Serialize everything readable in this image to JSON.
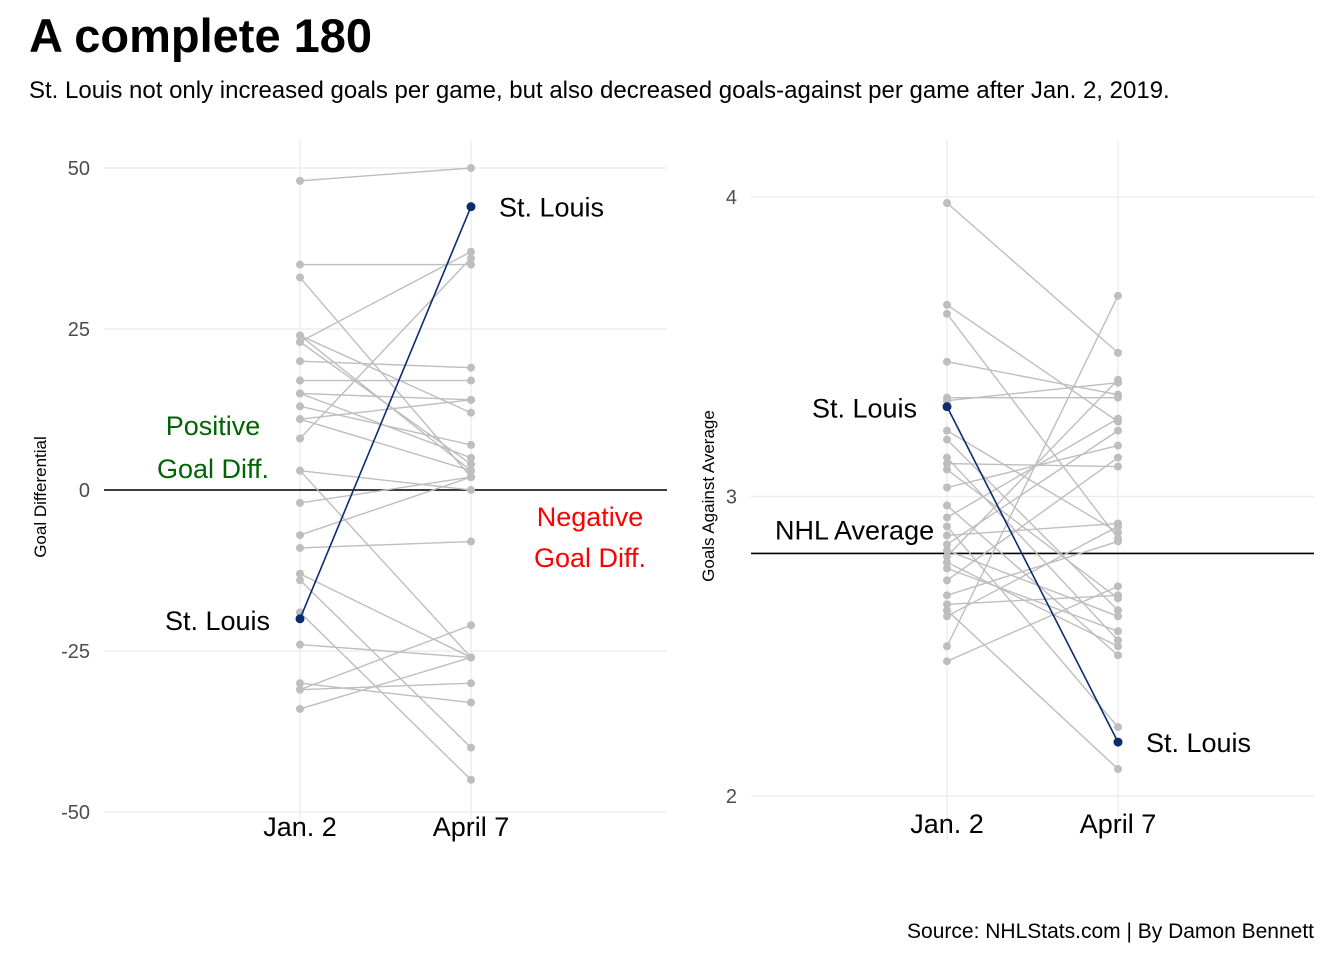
{
  "title": "A complete 180",
  "subtitle": "St. Louis not only increased goals per game, but also decreased goals-against per game after Jan. 2, 2019.",
  "caption": "Source: NHLStats.com | By Damon Bennett",
  "colors": {
    "others": "#bebebe",
    "highlight": "#0b2d6e",
    "reference": "#000000",
    "positive": "#006400",
    "negative": "#ff0000",
    "grid": "#ebebeb"
  },
  "chart_data": [
    {
      "type": "line",
      "ylabel": "Goal Differential",
      "categories": [
        "Jan. 2",
        "April 7"
      ],
      "ylim": [
        -50,
        50
      ],
      "yticks": [
        -50,
        -25,
        0,
        25,
        50
      ],
      "ytick_labels": [
        "-50",
        "-25",
        "0",
        "25",
        "50"
      ],
      "reference_line": 0,
      "highlight": {
        "team": "St. Louis",
        "values": [
          -20,
          44
        ],
        "labels": [
          "St. Louis",
          "St. Louis"
        ]
      },
      "annotations": [
        {
          "lines": [
            "Positive",
            "Goal Diff."
          ],
          "color": "positive"
        },
        {
          "lines": [
            "Negative",
            "Goal Diff."
          ],
          "color": "negative"
        }
      ],
      "pairs": [
        [
          48,
          50
        ],
        [
          35,
          35
        ],
        [
          33,
          2
        ],
        [
          24,
          3
        ],
        [
          24,
          12
        ],
        [
          23,
          37
        ],
        [
          23,
          4
        ],
        [
          20,
          19
        ],
        [
          17,
          17
        ],
        [
          15,
          14
        ],
        [
          15,
          5
        ],
        [
          13,
          7
        ],
        [
          11,
          14
        ],
        [
          11,
          3
        ],
        [
          8,
          36
        ],
        [
          3,
          0
        ],
        [
          3,
          -26
        ],
        [
          -2,
          2
        ],
        [
          -7,
          2
        ],
        [
          -9,
          -8
        ],
        [
          -13,
          -26
        ],
        [
          -14,
          -40
        ],
        [
          -19,
          -45
        ],
        [
          -24,
          -26
        ],
        [
          -30,
          -33
        ],
        [
          -31,
          -30
        ],
        [
          -31,
          -21
        ],
        [
          -34,
          -26
        ]
      ]
    },
    {
      "type": "line",
      "ylabel": "Goals Against Average",
      "categories": [
        "Jan. 2",
        "April 7"
      ],
      "ylim": [
        1.92,
        4.2
      ],
      "yticks": [
        2,
        3,
        4
      ],
      "ytick_labels": [
        "2",
        "3",
        "4"
      ],
      "reference_line": 2.81,
      "reference_label": "NHL Average",
      "highlight": {
        "team": "St. Louis",
        "values": [
          3.3,
          2.18
        ],
        "labels": [
          "St. Louis",
          "St. Louis"
        ]
      },
      "pairs": [
        [
          3.98,
          3.48
        ],
        [
          3.64,
          3.25
        ],
        [
          3.61,
          2.86
        ],
        [
          3.45,
          3.34
        ],
        [
          3.33,
          3.33
        ],
        [
          3.32,
          3.38
        ],
        [
          3.22,
          2.88
        ],
        [
          3.19,
          2.62
        ],
        [
          3.13,
          2.52
        ],
        [
          3.11,
          3.1
        ],
        [
          3.09,
          2.66
        ],
        [
          3.03,
          3.17
        ],
        [
          2.97,
          2.47
        ],
        [
          2.93,
          3.26
        ],
        [
          2.9,
          2.23
        ],
        [
          2.87,
          2.91
        ],
        [
          2.84,
          3.22
        ],
        [
          2.82,
          2.6
        ],
        [
          2.8,
          3.39
        ],
        [
          2.78,
          2.5
        ],
        [
          2.76,
          2.55
        ],
        [
          2.72,
          3.13
        ],
        [
          2.67,
          2.85
        ],
        [
          2.64,
          2.67
        ],
        [
          2.62,
          2.09
        ],
        [
          2.6,
          2.9
        ],
        [
          2.5,
          3.67
        ],
        [
          2.45,
          2.7
        ]
      ]
    }
  ]
}
